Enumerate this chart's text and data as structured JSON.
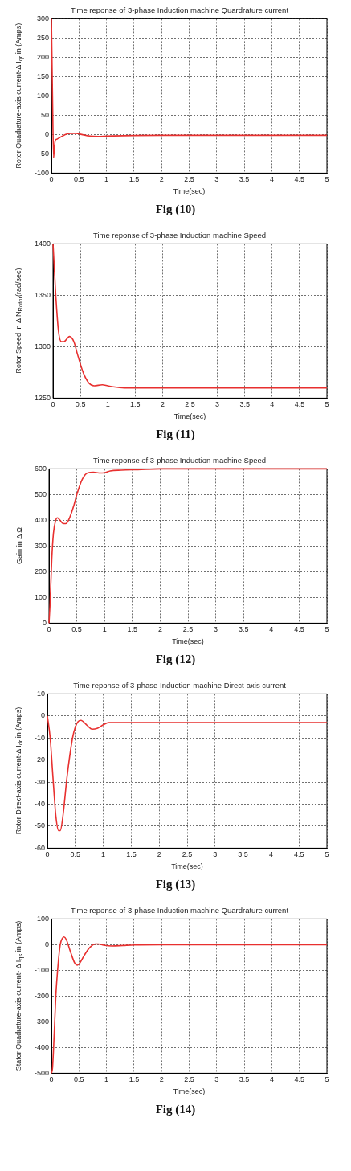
{
  "chart_data": [
    {
      "type": "line",
      "title": "Time reponse of 3-phase Induction machine Quardrature current",
      "xlabel": "Time(sec)",
      "ylabel": "Rotor Quadrature-axis current-Δ I$_{qr}$ in (Amps)",
      "x": [
        0,
        0.02,
        0.04,
        0.05,
        0.07,
        0.1,
        0.15,
        0.25,
        0.35,
        0.45,
        0.55,
        0.7,
        0.85,
        1.0,
        1.3,
        2,
        5
      ],
      "series": [
        {
          "color": "#e8302f",
          "values": [
            300,
            100,
            -60,
            -40,
            -15,
            -12,
            -8,
            0,
            3,
            3,
            0,
            -4,
            -5,
            -4,
            -3,
            -2,
            -2
          ]
        }
      ],
      "xlim": [
        0,
        5
      ],
      "xticks": [
        0,
        0.5,
        1,
        1.5,
        2,
        2.5,
        3,
        3.5,
        4,
        4.5,
        5
      ],
      "ylim": [
        -100,
        300
      ],
      "yticks": [
        -100,
        -50,
        0,
        50,
        100,
        150,
        200,
        250,
        300
      ],
      "grid": true,
      "legend": false,
      "marker": "none",
      "line_style": "solid",
      "annotations": [
        "Fig (10)"
      ]
    },
    {
      "type": "line",
      "title": "Time reponse of 3-phase Induction machine Speed",
      "xlabel": "Time(sec)",
      "ylabel": "Rotor Speed in Δ N$_{Rotor}$(rad/sec)",
      "x": [
        0,
        0.02,
        0.05,
        0.1,
        0.15,
        0.2,
        0.3,
        0.38,
        0.45,
        0.55,
        0.65,
        0.75,
        0.9,
        1.0,
        1.1,
        1.3,
        1.5,
        5
      ],
      "series": [
        {
          "color": "#e8302f",
          "values": [
            1400,
            1380,
            1350,
            1315,
            1305,
            1305,
            1310,
            1305,
            1292,
            1275,
            1265,
            1262,
            1263,
            1262,
            1261,
            1260,
            1260,
            1260
          ]
        }
      ],
      "xlim": [
        0,
        5
      ],
      "xticks": [
        0,
        0.5,
        1,
        1.5,
        2,
        2.5,
        3,
        3.5,
        4,
        4.5,
        5
      ],
      "ylim": [
        1250,
        1400
      ],
      "yticks": [
        1250,
        1300,
        1350,
        1400
      ],
      "grid": true,
      "legend": false,
      "marker": "none",
      "line_style": "solid",
      "annotations": [
        "Fig (11)"
      ]
    },
    {
      "type": "line",
      "title": "Time reponse of 3-phase Induction machine Speed",
      "xlabel": "Time(sec)",
      "ylabel": "Gain in Δ Ω",
      "x": [
        0,
        0.02,
        0.05,
        0.08,
        0.12,
        0.15,
        0.2,
        0.25,
        0.3,
        0.35,
        0.45,
        0.5,
        0.6,
        0.7,
        0.8,
        0.9,
        1.0,
        1.1,
        1.3,
        1.6,
        2,
        5
      ],
      "series": [
        {
          "color": "#e8302f",
          "values": [
            0,
            80,
            250,
            350,
            400,
            410,
            400,
            388,
            387,
            400,
            460,
            500,
            560,
            585,
            587,
            584,
            585,
            592,
            595,
            597,
            600,
            600
          ]
        }
      ],
      "xlim": [
        0,
        5
      ],
      "xticks": [
        0,
        0.5,
        1,
        1.5,
        2,
        2.5,
        3,
        3.5,
        4,
        4.5,
        5
      ],
      "ylim": [
        0,
        600
      ],
      "yticks": [
        0,
        100,
        200,
        300,
        400,
        500,
        600
      ],
      "grid": true,
      "legend": false,
      "marker": "none",
      "line_style": "solid",
      "annotations": [
        "Fig (12)"
      ]
    },
    {
      "type": "line",
      "title": "Time reponse of 3-phase Induction machine Direct-axis current",
      "xlabel": "Time(sec)",
      "ylabel": "Rotor Direct-axis current-Δ I$_{dr}$ in (Amps)",
      "x": [
        0,
        0.05,
        0.1,
        0.15,
        0.2,
        0.23,
        0.28,
        0.35,
        0.45,
        0.5,
        0.55,
        0.6,
        0.7,
        0.8,
        0.9,
        1.0,
        1.1,
        1.5,
        5
      ],
      "series": [
        {
          "color": "#e8302f",
          "values": [
            0,
            -10,
            -28,
            -45,
            -52,
            -52,
            -45,
            -28,
            -10,
            -5,
            -2.5,
            -2,
            -4,
            -6,
            -5.5,
            -4,
            -3,
            -3,
            -3
          ]
        }
      ],
      "xlim": [
        0,
        5
      ],
      "xticks": [
        0,
        0.5,
        1,
        1.5,
        2,
        2.5,
        3,
        3.5,
        4,
        4.5,
        5
      ],
      "ylim": [
        -60,
        10
      ],
      "yticks": [
        -60,
        -50,
        -40,
        -30,
        -20,
        -10,
        0,
        10
      ],
      "grid": true,
      "legend": false,
      "marker": "none",
      "line_style": "solid",
      "annotations": [
        "Fig (13)"
      ]
    },
    {
      "type": "line",
      "title": "Time reponse of 3-phase Induction machine Quardrature current",
      "xlabel": "Time(sec)",
      "ylabel": "Stator Quadrature-axis current- Δ I$_{qs}$ in (Amps)",
      "x": [
        0,
        0.02,
        0.05,
        0.08,
        0.12,
        0.16,
        0.2,
        0.23,
        0.27,
        0.35,
        0.42,
        0.47,
        0.52,
        0.6,
        0.7,
        0.8,
        0.85,
        0.95,
        1.1,
        1.3,
        1.5,
        2,
        5
      ],
      "series": [
        {
          "color": "#e8302f",
          "values": [
            -500,
            -480,
            -350,
            -200,
            -80,
            0,
            25,
            30,
            20,
            -30,
            -70,
            -80,
            -70,
            -40,
            -10,
            3,
            3,
            -2,
            -5,
            -3,
            -1,
            0,
            0
          ]
        }
      ],
      "xlim": [
        0,
        5
      ],
      "xticks": [
        0,
        0.5,
        1,
        1.5,
        2,
        2.5,
        3,
        3.5,
        4,
        4.5,
        5
      ],
      "ylim": [
        -500,
        100
      ],
      "yticks": [
        -500,
        -400,
        -300,
        -200,
        -100,
        0,
        100
      ],
      "grid": true,
      "legend": false,
      "marker": "none",
      "line_style": "solid",
      "annotations": [
        "Fig (14)"
      ]
    }
  ]
}
